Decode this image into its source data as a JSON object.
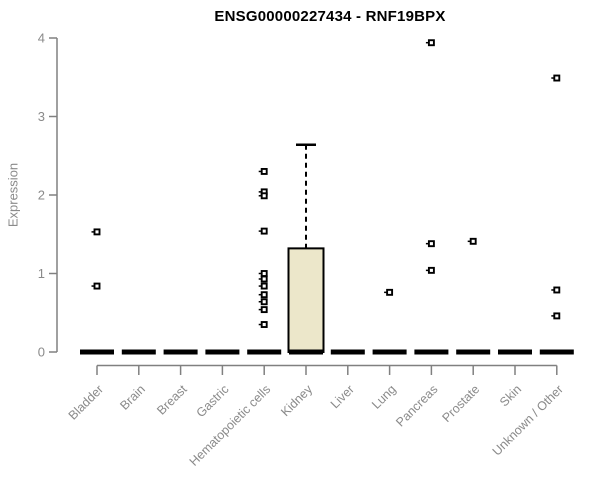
{
  "chart_data": {
    "type": "boxplot",
    "title": "ENSG00000227434 - RNF19BPX",
    "ylabel": "Expression",
    "xlabel": "",
    "ylim": [
      0,
      4
    ],
    "yticks": [
      0,
      1,
      2,
      3,
      4
    ],
    "grid": "off",
    "legend": "none",
    "marker": "open-square",
    "colors": {
      "box_fill": "#ECE7CA",
      "box_stroke": "#000000",
      "median": "#000000",
      "point": "#000000",
      "axis": "#808080",
      "tick_text": "#8a8a8a",
      "title_text": "#000000",
      "background": "#ffffff"
    },
    "categories": [
      "Bladder",
      "Brain",
      "Breast",
      "Gastric",
      "Hematopoietic cells",
      "Kidney",
      "Liver",
      "Lung",
      "Pancreas",
      "Prostate",
      "Skin",
      "Unknown / Other"
    ],
    "groups": [
      {
        "category": "Bladder",
        "median": 0,
        "points": [
          1.53,
          0.84
        ]
      },
      {
        "category": "Brain",
        "median": 0,
        "points": []
      },
      {
        "category": "Breast",
        "median": 0,
        "points": []
      },
      {
        "category": "Gastric",
        "median": 0,
        "points": []
      },
      {
        "category": "Hematopoietic cells",
        "median": 0,
        "points": [
          2.3,
          2.04,
          1.99,
          1.54,
          1.0,
          0.93,
          0.84,
          0.73,
          0.64,
          0.54,
          0.35
        ]
      },
      {
        "category": "Kidney",
        "median": 0,
        "box": {
          "q1": 0,
          "q3": 1.32,
          "whisker_low": 0,
          "whisker_high": 2.64
        },
        "points": []
      },
      {
        "category": "Liver",
        "median": 0,
        "points": []
      },
      {
        "category": "Lung",
        "median": 0,
        "points": [
          0.76
        ]
      },
      {
        "category": "Pancreas",
        "median": 0,
        "points": [
          3.94,
          1.38,
          1.04
        ]
      },
      {
        "category": "Prostate",
        "median": 0,
        "points": [
          1.41
        ]
      },
      {
        "category": "Skin",
        "median": 0,
        "points": []
      },
      {
        "category": "Unknown / Other",
        "median": 0,
        "points": [
          3.49,
          0.79,
          0.46
        ]
      }
    ]
  }
}
